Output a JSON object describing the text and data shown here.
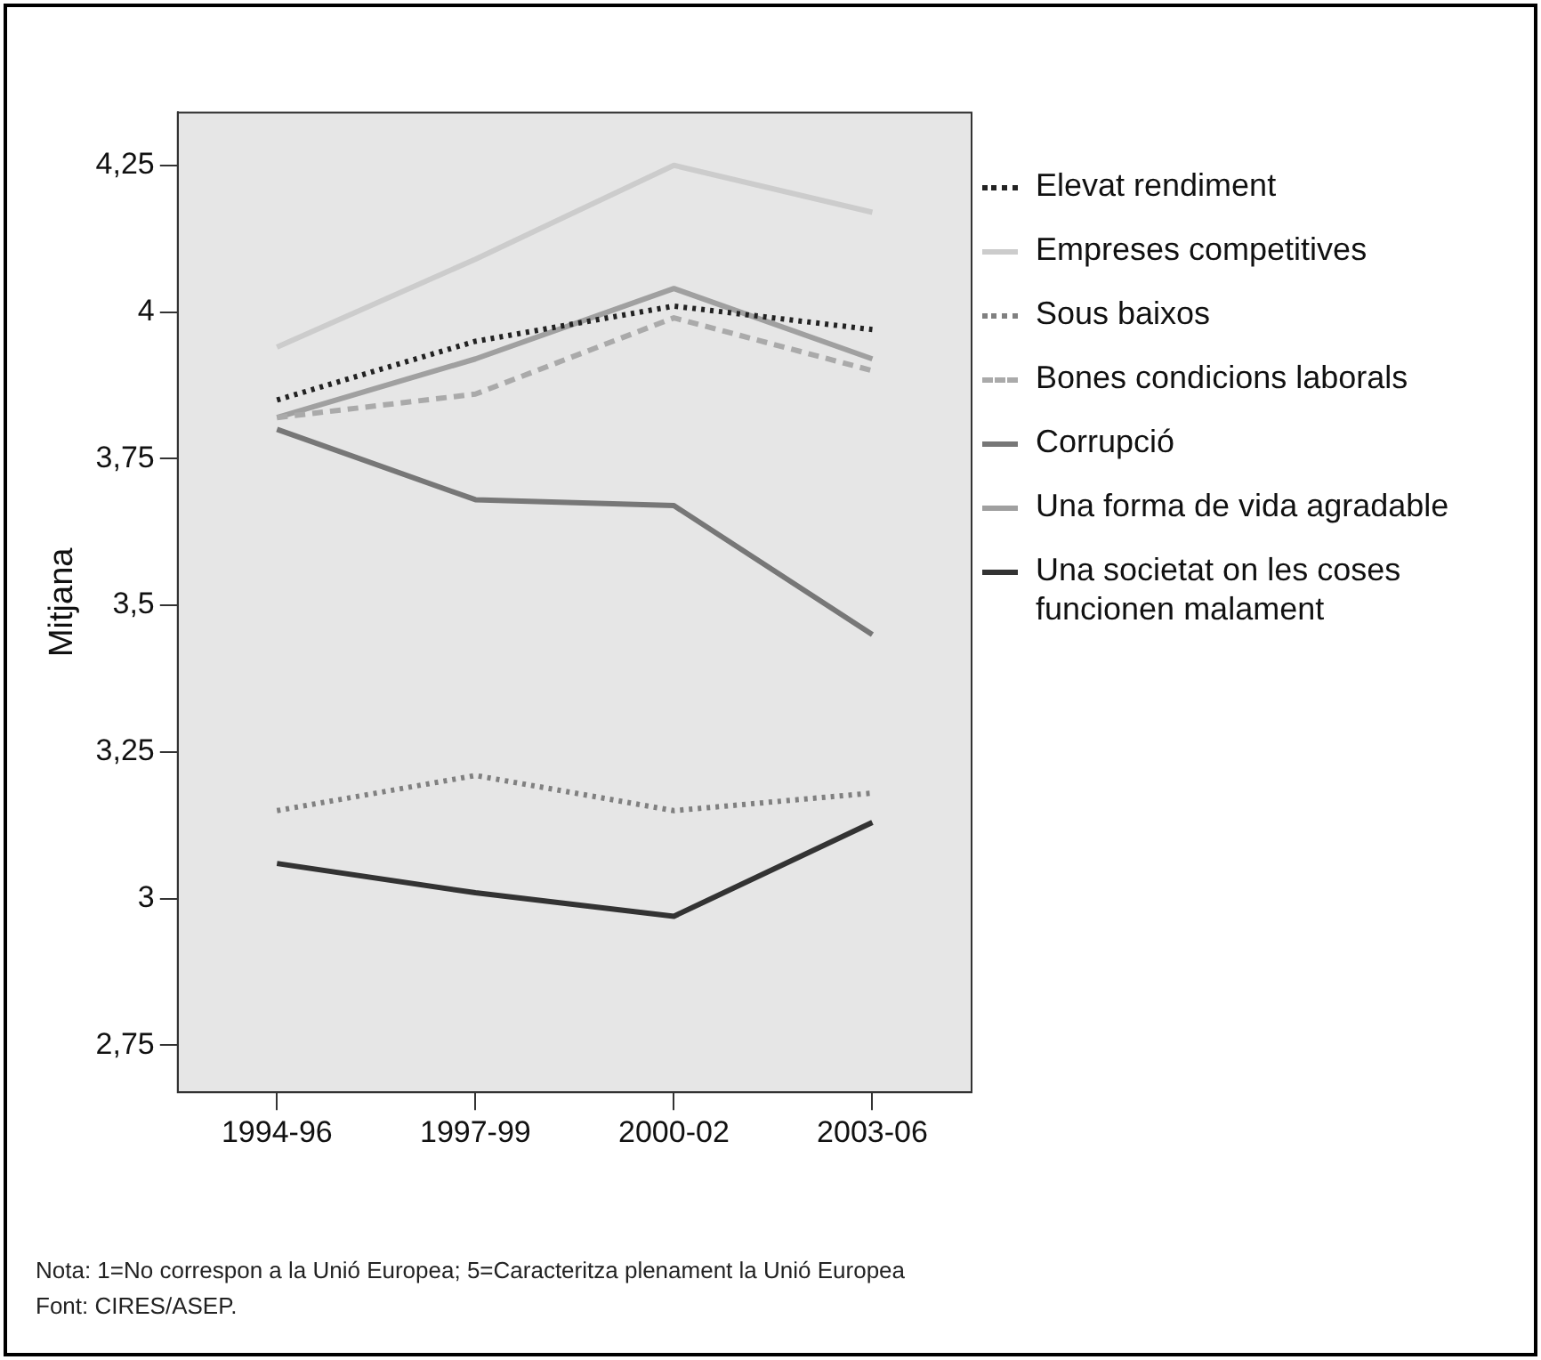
{
  "chart_data": {
    "type": "line",
    "ylabel": "Mitjana",
    "categories": [
      "1994-96",
      "1997-99",
      "2000-02",
      "2003-06"
    ],
    "ylim": [
      2.67,
      4.34
    ],
    "yticks": [
      {
        "value": 2.75,
        "label": "2,75"
      },
      {
        "value": 3,
        "label": "3"
      },
      {
        "value": 3.25,
        "label": "3,25"
      },
      {
        "value": 3.5,
        "label": "3,5"
      },
      {
        "value": 3.75,
        "label": "3,75"
      },
      {
        "value": 4,
        "label": "4"
      },
      {
        "value": 4.25,
        "label": "4,25"
      }
    ],
    "grid": false,
    "legend": "right",
    "marker": "none",
    "series": [
      {
        "name": "Elevat rendiment",
        "color": "#222222",
        "line_style": "dotted",
        "values": [
          3.85,
          3.95,
          4.01,
          3.97
        ]
      },
      {
        "name": "Empreses competitives",
        "color": "#cccccc",
        "line_style": "solid",
        "values": [
          3.94,
          4.09,
          4.25,
          4.17
        ]
      },
      {
        "name": "Sous baixos",
        "color": "#808080",
        "line_style": "dotted",
        "values": [
          3.15,
          3.21,
          3.15,
          3.18
        ]
      },
      {
        "name": "Bones condicions laborals",
        "color": "#aaaaaa",
        "line_style": "dashed",
        "values": [
          3.82,
          3.86,
          3.99,
          3.9
        ]
      },
      {
        "name": "Corrupció",
        "color": "#777777",
        "line_style": "solid",
        "values": [
          3.8,
          3.68,
          3.67,
          3.45
        ]
      },
      {
        "name": "Una forma de vida agradable",
        "color": "#a0a0a0",
        "line_style": "solid",
        "values": [
          3.82,
          3.92,
          4.04,
          3.92
        ]
      },
      {
        "name": "Una societat on les coses funcionen malament",
        "color": "#333333",
        "line_style": "solid",
        "values": [
          3.06,
          3.01,
          2.97,
          3.13
        ]
      }
    ],
    "annotations": [
      "Nota: 1=No correspon a la Unió Europea; 5=Caracteritza plenament la Unió Europea",
      "Font: CIRES/ASEP."
    ]
  }
}
